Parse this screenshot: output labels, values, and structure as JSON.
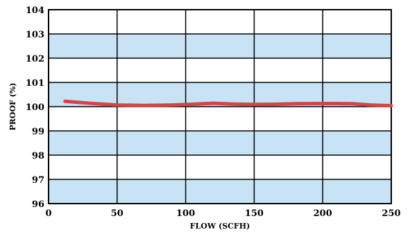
{
  "chart_data": {
    "type": "line",
    "xlabel": "FLOW (SCFH)",
    "ylabel": "PROOF (%)",
    "xlim": [
      0,
      250
    ],
    "ylim": [
      96,
      104
    ],
    "xticks": [
      0,
      50,
      100,
      150,
      200,
      250
    ],
    "yticks": [
      96,
      97,
      98,
      99,
      100,
      101,
      102,
      103,
      104
    ],
    "grid": true,
    "band_color": "#c8e3f5",
    "line_color": "#d64545",
    "series": [
      {
        "x": [
          12,
          30,
          50,
          70,
          90,
          105,
          120,
          135,
          150,
          165,
          180,
          195,
          210,
          222,
          235,
          250
        ],
        "y": [
          100.22,
          100.14,
          100.07,
          100.05,
          100.07,
          100.1,
          100.14,
          100.11,
          100.09,
          100.1,
          100.12,
          100.13,
          100.13,
          100.12,
          100.07,
          100.04
        ]
      }
    ]
  }
}
